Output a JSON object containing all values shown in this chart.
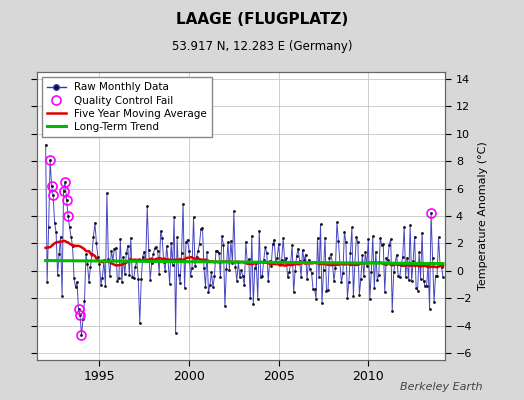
{
  "title": "LAAGE (FLUGPLATZ)",
  "subtitle": "53.917 N, 12.283 E (Germany)",
  "ylabel_right": "Temperature Anomaly (°C)",
  "legend_entries": [
    "Raw Monthly Data",
    "Quality Control Fail",
    "Five Year Moving Average",
    "Long-Term Trend"
  ],
  "ylim": [
    -6.5,
    14.5
  ],
  "xlim": [
    1991.5,
    2014.3
  ],
  "yticks": [
    -6,
    -4,
    -2,
    0,
    2,
    4,
    6,
    8,
    10,
    12,
    14
  ],
  "xticks": [
    1995,
    2000,
    2005,
    2010
  ],
  "bg_color": "#d8d8d8",
  "plot_bg_color": "#ffffff",
  "grid_color": "#bbbbbb",
  "raw_line_color": "#3333bb",
  "raw_marker_color": "#111111",
  "qc_color": "#ff00ff",
  "ma_color": "#dd0000",
  "trend_color": "#00bb00",
  "watermark": "Berkeley Earth",
  "seed": 17
}
